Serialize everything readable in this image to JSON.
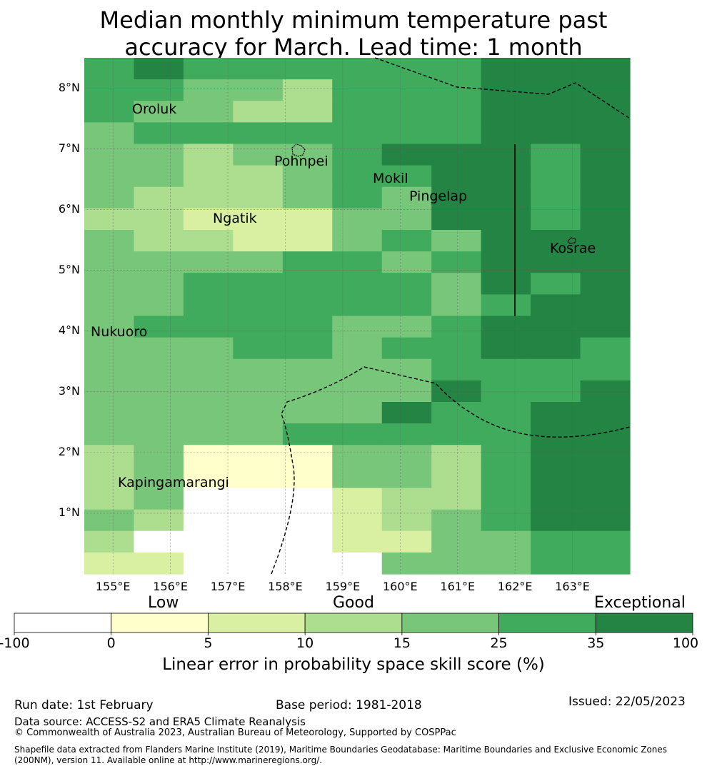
{
  "title": {
    "line1": "Median monthly minimum temperature past",
    "line2": "accuracy for March. Lead time: 1 month"
  },
  "map": {
    "lon_range": [
      154.5,
      164.0
    ],
    "lat_range": [
      -0.0,
      8.5
    ],
    "x_ticks": [
      "155°E",
      "156°E",
      "157°E",
      "158°E",
      "159°E",
      "160°E",
      "161°E",
      "162°E",
      "163°E"
    ],
    "y_ticks": [
      "8°N",
      "7°N",
      "6°N",
      "5°N",
      "4°N",
      "3°N",
      "2°N",
      "1°N"
    ],
    "places": [
      {
        "name": "Oroluk"
      },
      {
        "name": "Pohnpei"
      },
      {
        "name": "Mokil"
      },
      {
        "name": "Pingelap"
      },
      {
        "name": "Ngatik"
      },
      {
        "name": "Kosrae"
      },
      {
        "name": "Nukuoro"
      },
      {
        "name": "Kapingamarangi"
      }
    ]
  },
  "colorbar": {
    "categories": [
      "Low",
      "Good",
      "Exceptional"
    ],
    "ticks": [
      "-100",
      "0",
      "5",
      "10",
      "15",
      "25",
      "35",
      "100"
    ],
    "colors": [
      "#ffffff",
      "#ffffcc",
      "#d9f0a3",
      "#addd8e",
      "#78c679",
      "#41ab5d",
      "#238443"
    ],
    "label": "Linear error in probability space skill score (%)"
  },
  "footer": {
    "run_date": "Run date: 1st February",
    "base_period": "Base period: 1981-2018",
    "issued": "Issued: 22/05/2023",
    "data_source": "Data source: ACCESS-S2 and ERA5 Climate Reanalysis",
    "copyright": "© Commonwealth of Australia 2023, Australian Bureau of Meteorology, Supported by COSPPac",
    "shapefile": "Shapefile data extracted from Flanders Marine Institute (2019), Maritime Boundaries Geodatabase: Maritime Boundaries and Exclusive Economic Zones (200NM), version 11. Available online at http://www.marineregions.org/."
  }
}
